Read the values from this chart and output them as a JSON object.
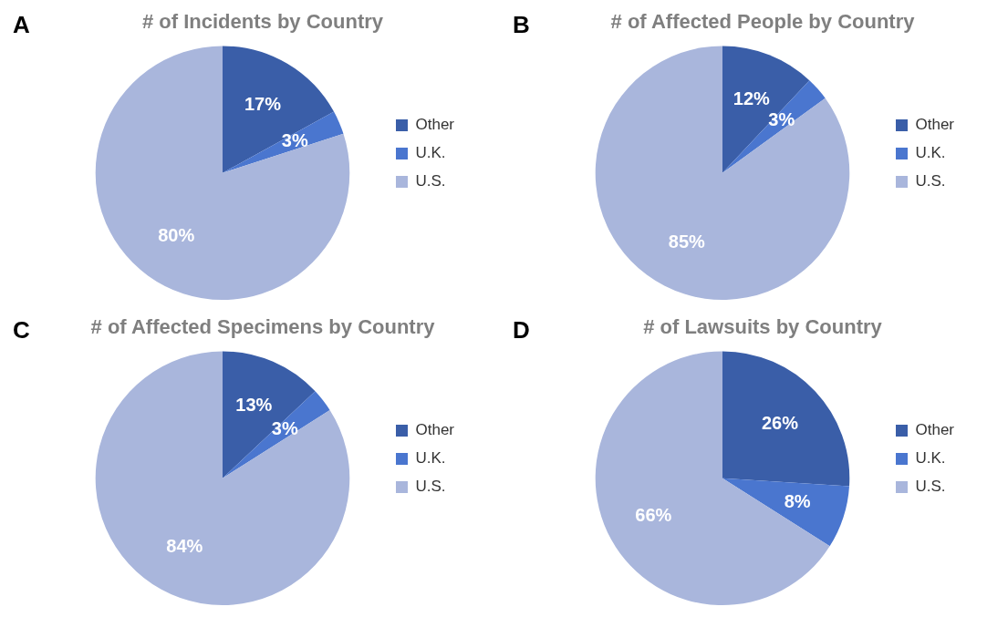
{
  "chart_data": [
    {
      "type": "pie",
      "title": "# of Incidents by Country",
      "annotations": [
        "A"
      ],
      "categories": [
        "Other",
        "U.K.",
        "U.S."
      ],
      "values": [
        17,
        3,
        80
      ],
      "value_labels": [
        "17%",
        "3%",
        "80%"
      ],
      "colors": [
        "#3a5ea8",
        "#4a76cf",
        "#a9b6dc"
      ],
      "legend": "right"
    },
    {
      "type": "pie",
      "title": "# of Affected People by Country",
      "annotations": [
        "B"
      ],
      "categories": [
        "Other",
        "U.K.",
        "U.S."
      ],
      "values": [
        12,
        3,
        85
      ],
      "value_labels": [
        "12%",
        "3%",
        "85%"
      ],
      "colors": [
        "#3a5ea8",
        "#4a76cf",
        "#a9b6dc"
      ],
      "legend": "right"
    },
    {
      "type": "pie",
      "title": "# of Affected Specimens by Country",
      "annotations": [
        "C"
      ],
      "categories": [
        "Other",
        "U.K.",
        "U.S."
      ],
      "values": [
        13,
        3,
        84
      ],
      "value_labels": [
        "13%",
        "3%",
        "84%"
      ],
      "colors": [
        "#3a5ea8",
        "#4a76cf",
        "#a9b6dc"
      ],
      "legend": "right"
    },
    {
      "type": "pie",
      "title": "# of Lawsuits by Country",
      "annotations": [
        "D"
      ],
      "categories": [
        "Other",
        "U.K.",
        "U.S."
      ],
      "values": [
        26,
        8,
        66
      ],
      "value_labels": [
        "26%",
        "8%",
        "66%"
      ],
      "colors": [
        "#3a5ea8",
        "#4a76cf",
        "#a9b6dc"
      ],
      "legend": "right"
    }
  ]
}
